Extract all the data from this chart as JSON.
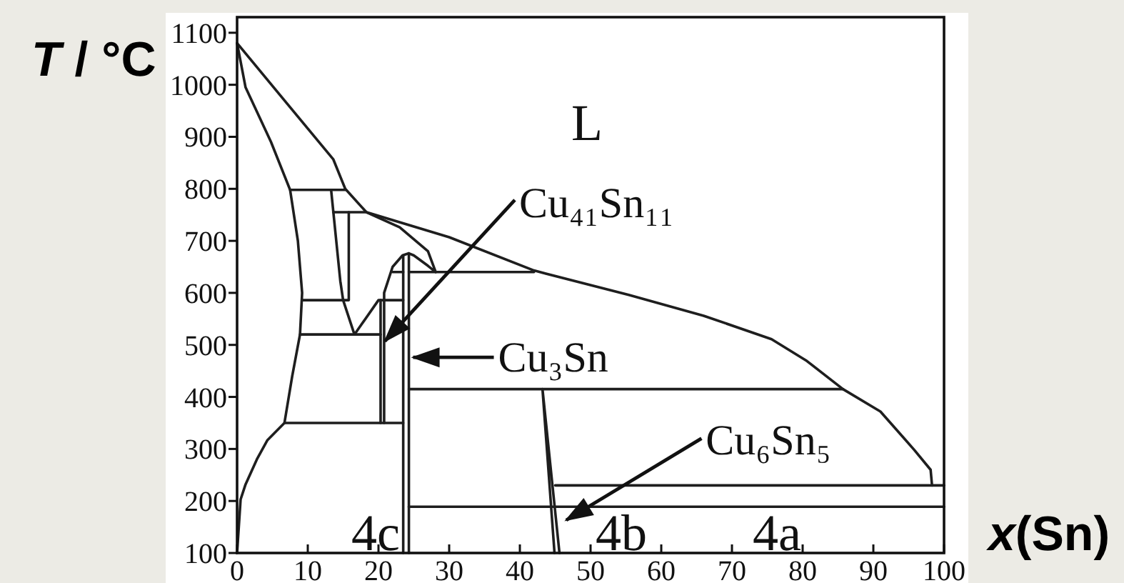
{
  "chart_data": {
    "type": "line",
    "xlabel": "x(Sn)",
    "ylabel": "T / °C",
    "xlim": [
      0,
      100
    ],
    "ylim": [
      100,
      1130
    ],
    "xticks": [
      0,
      10,
      20,
      30,
      40,
      50,
      60,
      70,
      80,
      90,
      100
    ],
    "yticks": [
      100,
      200,
      300,
      400,
      500,
      600,
      700,
      800,
      900,
      1000,
      1100
    ],
    "line_style": "solid",
    "series": [
      {
        "color": "#1e1e1e",
        "x": [
          0,
          7,
          13.6,
          15.3,
          18.3,
          30,
          42,
          55.4,
          66,
          75.6,
          80.6,
          85.7,
          91,
          95.8,
          98.1,
          98.3
        ],
        "values": [
          1080,
          965,
          857,
          800,
          755,
          707,
          643,
          596,
          556,
          511,
          469,
          415,
          372,
          298,
          260,
          230
        ]
      },
      {
        "color": "#1e1e1e",
        "x": [
          0,
          1.2,
          4.8,
          7.5,
          8.6,
          9.2,
          8.9,
          7.8,
          6.7,
          4.3,
          2.8,
          1.2,
          0.5,
          0
        ],
        "values": [
          1080,
          995,
          890,
          798,
          700,
          600,
          520,
          440,
          350,
          317,
          280,
          232,
          203,
          100
        ]
      },
      {
        "color": "#1e1e1e",
        "x": [
          7.5,
          15.3
        ],
        "values": [
          798,
          798
        ]
      },
      {
        "color": "#1e1e1e",
        "x": [
          13.3,
          14.6,
          15.0,
          16.6,
          20.0,
          23.5
        ],
        "values": [
          798,
          623,
          586,
          520,
          586,
          586
        ]
      },
      {
        "color": "#1e1e1e",
        "x": [
          9.2,
          15.8,
          15.8
        ],
        "values": [
          586,
          586,
          755
        ]
      },
      {
        "color": "#1e1e1e",
        "x": [
          8.9,
          20.3
        ],
        "values": [
          520,
          520
        ]
      },
      {
        "color": "#1e1e1e",
        "x": [
          6.7,
          23.5
        ],
        "values": [
          350,
          350
        ]
      },
      {
        "color": "#1e1e1e",
        "x": [
          20.3,
          20.3
        ],
        "values": [
          586,
          350
        ]
      },
      {
        "color": "#1e1e1e",
        "x": [
          20.8,
          20.8,
          22,
          23.4,
          24.3,
          25,
          27,
          28.1,
          27,
          23,
          18.3,
          13.6
        ],
        "values": [
          350,
          600,
          650,
          672,
          676,
          672,
          652,
          640,
          680,
          726,
          755,
          755
        ]
      },
      {
        "color": "#1e1e1e",
        "x": [
          23.5,
          23.5
        ],
        "values": [
          672,
          100
        ]
      },
      {
        "color": "#1e1e1e",
        "x": [
          24.3,
          24.3
        ],
        "values": [
          676,
          100
        ]
      },
      {
        "color": "#1e1e1e",
        "x": [
          22.0,
          23.5
        ],
        "values": [
          640,
          640
        ]
      },
      {
        "color": "#1e1e1e",
        "x": [
          24.3,
          42
        ],
        "values": [
          640,
          640
        ]
      },
      {
        "color": "#1e1e1e",
        "x": [
          24.3,
          85.7
        ],
        "values": [
          415,
          415
        ]
      },
      {
        "color": "#1e1e1e",
        "x": [
          44.9,
          43.2,
          45.6
        ],
        "values": [
          100,
          415,
          100
        ]
      },
      {
        "color": "#1e1e1e",
        "x": [
          45.0,
          100
        ],
        "values": [
          230,
          230
        ]
      },
      {
        "color": "#1e1e1e",
        "x": [
          24.3,
          100
        ],
        "values": [
          189,
          189
        ]
      }
    ],
    "annotations": [
      "L",
      {
        "text": "Cu₄₁Sn₁₁",
        "x": 20.7,
        "y": 504
      },
      {
        "text": "Cu₃Sn",
        "x": 24.6,
        "y": 476
      },
      {
        "text": "Cu₆Sn₅",
        "x": 46.3,
        "y": 161
      },
      "4c",
      "4b",
      "4a"
    ]
  }
}
